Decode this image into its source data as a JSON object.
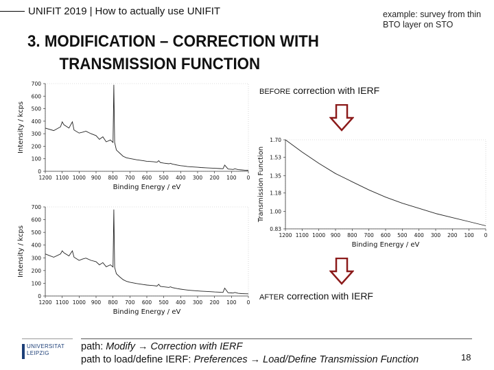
{
  "header": {
    "course": "UNIFIT 2019",
    "separator": "|",
    "subtitle": "How to actually use UNIFIT"
  },
  "example_note": "example: survey from thin BTO layer on STO",
  "heading": {
    "line1": "3. MODIFICATION – CORRECTION WITH",
    "line2": "TRANSMISSION FUNCTION"
  },
  "annotations": {
    "before_prefix": "BEFORE",
    "before_text": " correction with IERF",
    "after_prefix": "AFTER",
    "after_text": " correction with IERF"
  },
  "footer": {
    "path_label": "path: ",
    "path_value": "Modify → Correction with IERF",
    "load_label": "path to load/define IERF: ",
    "load_value": "Preferences → Load/Define Transmission Function"
  },
  "page_number": "18",
  "logo": {
    "line1": "UNIVERSITAT",
    "line2": "LEIPZIG"
  },
  "colors": {
    "arrow": "#8b1a1a",
    "logo": "#1d3f78"
  },
  "icons": [
    "down-arrow-icon",
    "university-logo"
  ],
  "chart_data": [
    {
      "type": "line",
      "panel": "before",
      "xlabel": "Binding Energy / eV",
      "ylabel": "Intensity / kcps",
      "xlim": [
        1200,
        0
      ],
      "ylim": [
        0,
        700
      ],
      "xticks": [
        1200,
        1100,
        1000,
        900,
        800,
        700,
        600,
        500,
        400,
        300,
        200,
        100,
        0
      ],
      "yticks": [
        0,
        100,
        200,
        300,
        400,
        500,
        600,
        700
      ],
      "series": [
        {
          "x": [
            1200,
            1150,
            1110,
            1100,
            1090,
            1060,
            1040,
            1030,
            1000,
            980,
            960,
            930,
            900,
            880,
            860,
            840,
            815,
            800,
            795,
            790,
            780,
            760,
            740,
            720,
            700,
            660,
            620,
            600,
            580,
            560,
            540,
            530,
            520,
            500,
            470,
            460,
            450,
            420,
            400,
            380,
            360,
            340,
            300,
            280,
            250,
            200,
            170,
            150,
            140,
            120,
            100,
            90,
            80,
            60,
            40,
            20,
            0
          ],
          "y": [
            345,
            325,
            355,
            395,
            372,
            345,
            395,
            330,
            305,
            312,
            320,
            300,
            285,
            255,
            275,
            235,
            250,
            230,
            690,
            230,
            170,
            145,
            120,
            108,
            102,
            92,
            84,
            80,
            78,
            76,
            72,
            85,
            70,
            65,
            60,
            64,
            58,
            50,
            45,
            42,
            38,
            36,
            32,
            30,
            28,
            24,
            22,
            20,
            50,
            18,
            16,
            15,
            20,
            13,
            11,
            9,
            8
          ]
        }
      ]
    },
    {
      "type": "line",
      "panel": "transmission",
      "xlabel": "Binding Energy / eV",
      "ylabel": "Transmission Function",
      "xlim": [
        1200,
        0
      ],
      "ylim": [
        0.83,
        1.7
      ],
      "xticks": [
        1200,
        1100,
        1000,
        900,
        800,
        700,
        600,
        500,
        400,
        300,
        200,
        100,
        0
      ],
      "yticks": [
        "1.70",
        "1.53",
        "1.35",
        "1.18",
        "1.00",
        "0.83"
      ],
      "series": [
        {
          "x": [
            1200,
            1100,
            1000,
            900,
            800,
            700,
            600,
            500,
            400,
            300,
            200,
            100,
            0
          ],
          "y": [
            1.7,
            1.58,
            1.47,
            1.37,
            1.29,
            1.21,
            1.14,
            1.08,
            1.03,
            0.98,
            0.94,
            0.9,
            0.86
          ]
        }
      ]
    },
    {
      "type": "line",
      "panel": "after",
      "xlabel": "Binding Energy / eV",
      "ylabel": "Intensity / kcps",
      "xlim": [
        1200,
        0
      ],
      "ylim": [
        0,
        700
      ],
      "xticks": [
        1200,
        1100,
        1000,
        900,
        800,
        700,
        600,
        500,
        400,
        300,
        200,
        100,
        0
      ],
      "yticks": [
        0,
        100,
        200,
        300,
        400,
        500,
        600,
        700
      ],
      "series": [
        {
          "x": [
            1200,
            1150,
            1110,
            1100,
            1090,
            1060,
            1040,
            1030,
            1000,
            980,
            960,
            930,
            900,
            880,
            860,
            840,
            815,
            800,
            795,
            790,
            780,
            760,
            740,
            720,
            700,
            660,
            620,
            600,
            580,
            560,
            540,
            530,
            520,
            500,
            470,
            460,
            450,
            420,
            400,
            380,
            360,
            340,
            300,
            280,
            250,
            200,
            170,
            150,
            140,
            120,
            100,
            90,
            80,
            60,
            40,
            20,
            0
          ],
          "y": [
            330,
            305,
            330,
            355,
            340,
            315,
            355,
            305,
            280,
            290,
            298,
            280,
            270,
            245,
            262,
            230,
            245,
            228,
            680,
            225,
            175,
            150,
            128,
            115,
            108,
            98,
            90,
            86,
            84,
            82,
            78,
            92,
            76,
            72,
            68,
            72,
            66,
            58,
            54,
            50,
            47,
            44,
            40,
            38,
            36,
            32,
            30,
            28,
            62,
            26,
            24,
            23,
            28,
            21,
            19,
            18,
            17
          ]
        }
      ]
    }
  ]
}
